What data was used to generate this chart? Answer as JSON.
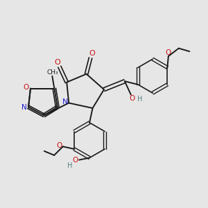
{
  "background_color": "#e6e6e6",
  "bond_color": "#1a1a1a",
  "figsize": [
    3.0,
    3.0
  ],
  "dpi": 100,
  "colors": {
    "N": "#1a1acc",
    "O": "#cc1111",
    "H": "#4d7f7f",
    "C": "#1a1a1a"
  }
}
